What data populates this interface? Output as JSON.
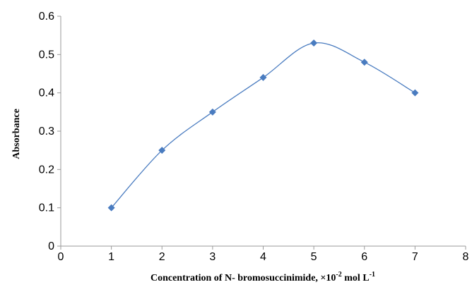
{
  "chart_data": {
    "type": "scatter",
    "title": "",
    "xlabel": "Concentration of N- bromosuccinimide, ×10",
    "xlabel_exp": "-2",
    "xlabel_unit": " mol L",
    "xlabel_unit_exp": "-1",
    "ylabel": "Absorbance",
    "xlim": [
      0,
      8
    ],
    "ylim": [
      0,
      0.6
    ],
    "xticks": [
      "0",
      "1",
      "2",
      "3",
      "4",
      "5",
      "6",
      "7",
      "8"
    ],
    "yticks": [
      "0",
      "0.1",
      "0.2",
      "0.3",
      "0.4",
      "0.5",
      "0.6"
    ],
    "grid": false,
    "legend": "none",
    "line_style": "smooth",
    "series": [
      {
        "marker": "diamond",
        "color": "#4a7cc0",
        "x": [
          1,
          2,
          3,
          4,
          5,
          6,
          7
        ],
        "y": [
          0.1,
          0.25,
          0.35,
          0.44,
          0.53,
          0.48,
          0.4
        ]
      }
    ]
  }
}
